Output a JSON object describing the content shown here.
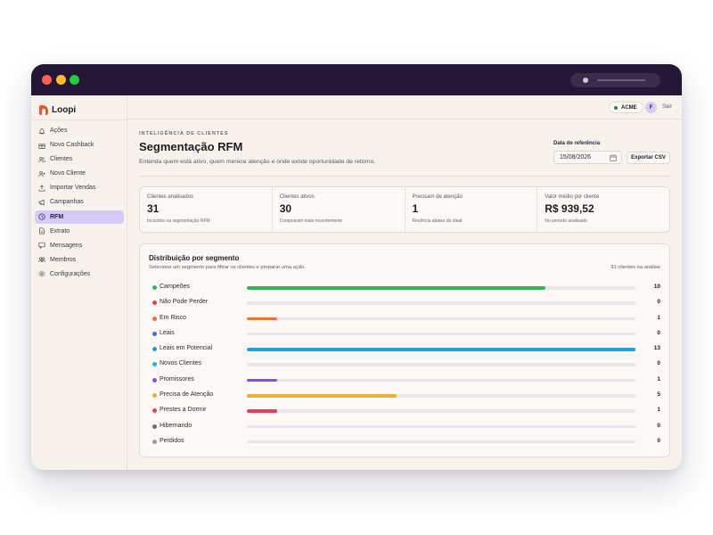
{
  "app": {
    "name": "Loopi"
  },
  "sidebar": {
    "items": [
      {
        "label": "Ações",
        "icon": "bell-icon",
        "active": false
      },
      {
        "label": "Novo Cashback",
        "icon": "gift-icon",
        "active": false
      },
      {
        "label": "Clientes",
        "icon": "users-icon",
        "active": false
      },
      {
        "label": "Novo Cliente",
        "icon": "user-plus-icon",
        "active": false
      },
      {
        "label": "Importar Vendas",
        "icon": "upload-icon",
        "active": false
      },
      {
        "label": "Campanhas",
        "icon": "megaphone-icon",
        "active": false
      },
      {
        "label": "RFM",
        "icon": "clock-icon",
        "active": true
      },
      {
        "label": "Extrato",
        "icon": "file-icon",
        "active": false
      },
      {
        "label": "Mensagens",
        "icon": "message-icon",
        "active": false
      },
      {
        "label": "Membros",
        "icon": "members-icon",
        "active": false
      },
      {
        "label": "Configurações",
        "icon": "gear-icon",
        "active": false
      }
    ]
  },
  "topbar": {
    "org": "ACME",
    "avatar_initial": "F",
    "logout": "Sair"
  },
  "header": {
    "eyebrow": "INTELIGÊNCIA DE CLIENTES",
    "title": "Segmentação RFM",
    "subtitle": "Entenda quem está ativo, quem merece atenção e onde existe oportunidade de retorno.",
    "ref_label": "Data de referência",
    "ref_date": "15/08/2026",
    "export_label": "Exportar CSV"
  },
  "kpis": [
    {
      "label": "Clientes analisados",
      "value": "31",
      "note": "Incluídos na segmentação RFM"
    },
    {
      "label": "Clientes ativos",
      "value": "30",
      "note": "Compraram mais recentemente"
    },
    {
      "label": "Precisam de atenção",
      "value": "1",
      "note": "Recência abaixo do ideal"
    },
    {
      "label": "Valor médio por cliente",
      "value": "R$ 939,52",
      "note": "No período analisado"
    }
  ],
  "distribution": {
    "title": "Distribuição por segmento",
    "description": "Selecione um segmento para filtrar os clientes e preparar uma ação.",
    "total_label": "31 clientes na análise",
    "max": 13,
    "segments": [
      {
        "name": "Campeões",
        "value": 10,
        "color": "#2fb85a"
      },
      {
        "name": "Não Pode Perder",
        "value": 0,
        "color": "#e0493f"
      },
      {
        "name": "Em Risco",
        "value": 1,
        "color": "#e8743a"
      },
      {
        "name": "Leais",
        "value": 0,
        "color": "#3f6fd8"
      },
      {
        "name": "Leais em Potencial",
        "value": 13,
        "color": "#1f9fd8"
      },
      {
        "name": "Novos Clientes",
        "value": 0,
        "color": "#25b3c8"
      },
      {
        "name": "Promissores",
        "value": 1,
        "color": "#8a4fd8"
      },
      {
        "name": "Precisa de Atenção",
        "value": 5,
        "color": "#e3b23c"
      },
      {
        "name": "Prestes a Dormir",
        "value": 1,
        "color": "#e0405a"
      },
      {
        "name": "Hibernando",
        "value": 0,
        "color": "#6a6a78"
      },
      {
        "name": "Perdidos",
        "value": 0,
        "color": "#9a9aa6"
      }
    ]
  }
}
